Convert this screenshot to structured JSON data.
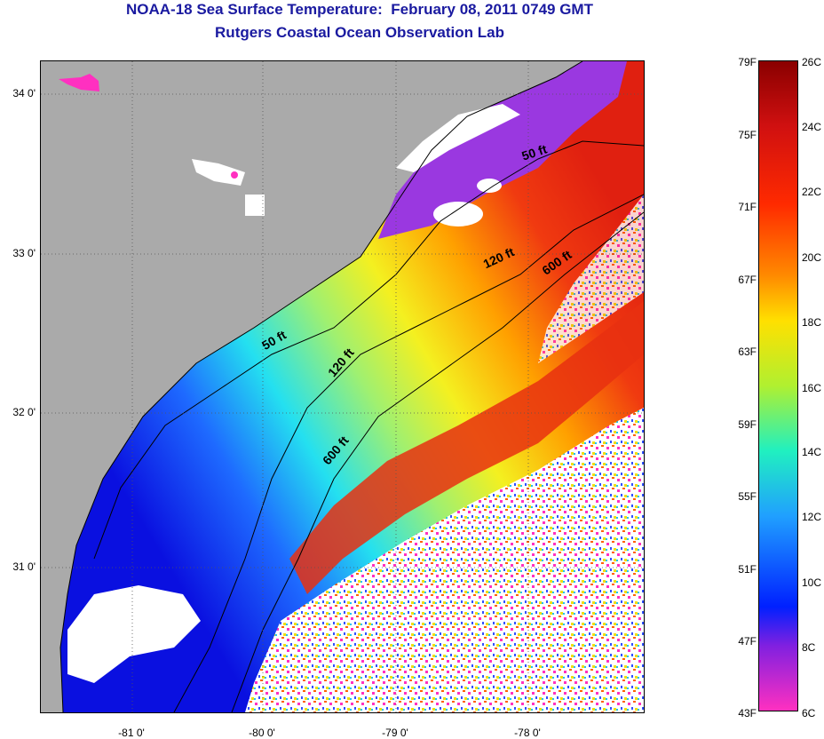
{
  "header": {
    "title": "NOAA-18 Sea Surface Temperature:  February 08, 2011 0749 GMT",
    "subtitle": "Rutgers Coastal Ocean Observation Lab"
  },
  "axes": {
    "latitudes": [
      "34 0'",
      "33 0'",
      "32 0'",
      "31 0'"
    ],
    "longitudes": [
      "-81 0'",
      "-80 0'",
      "-79 0'",
      "-78 0'"
    ]
  },
  "contours": {
    "c50a": "50 ft",
    "c50b": "50 ft",
    "c120a": "120 ft",
    "c120b": "120 ft",
    "c600a": "600 ft",
    "c600b": "600 ft"
  },
  "colorbar": {
    "fahrenheit": [
      "79F",
      "75F",
      "71F",
      "67F",
      "63F",
      "59F",
      "55F",
      "51F",
      "47F",
      "43F"
    ],
    "celsius": [
      "26C",
      "24C",
      "22C",
      "20C",
      "18C",
      "16C",
      "14C",
      "12C",
      "10C",
      "8C",
      "6C"
    ]
  },
  "colors": {
    "title": "#1a1aa0",
    "land": "#aaaaaa",
    "cloud": "#ffffff"
  }
}
